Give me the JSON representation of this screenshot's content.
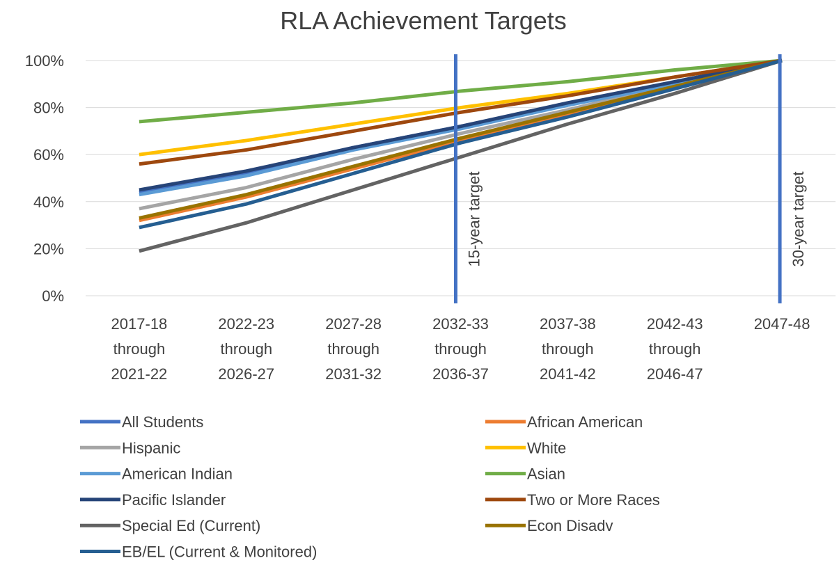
{
  "chart_data": {
    "type": "line",
    "title": "RLA Achievement Targets",
    "categories": [
      "2017-18\nthrough\n2021-22",
      "2022-23\nthrough\n2026-27",
      "2027-28\nthrough\n2031-32",
      "2032-33\nthrough\n2036-37",
      "2037-38\nthrough\n2041-42",
      "2042-43\nthrough\n2046-47",
      "2047-48"
    ],
    "series": [
      {
        "name": "All Students",
        "color": "#4472c4",
        "values": [
          44,
          52,
          63,
          72,
          81,
          91,
          100
        ]
      },
      {
        "name": "African American",
        "color": "#ed7d31",
        "values": [
          32,
          42,
          54,
          66,
          77,
          89,
          100
        ]
      },
      {
        "name": "Hispanic",
        "color": "#a5a5a5",
        "values": [
          37,
          46,
          58,
          69,
          79,
          90,
          100
        ]
      },
      {
        "name": "White",
        "color": "#ffc000",
        "values": [
          60,
          66,
          73,
          80,
          86,
          93,
          100
        ]
      },
      {
        "name": "American Indian",
        "color": "#5b9bd5",
        "values": [
          43,
          51,
          62,
          71,
          81,
          90,
          100
        ]
      },
      {
        "name": "Asian",
        "color": "#70ad47",
        "values": [
          74,
          78,
          82,
          87,
          91,
          96,
          100
        ]
      },
      {
        "name": "Pacific Islander",
        "color": "#264478",
        "values": [
          45,
          53,
          63,
          72,
          82,
          91,
          100
        ]
      },
      {
        "name": "Two or More Races",
        "color": "#9e480e",
        "values": [
          56,
          62,
          70,
          78,
          85,
          93,
          100
        ]
      },
      {
        "name": "Special Ed (Current)",
        "color": "#636363",
        "values": [
          19,
          31,
          45,
          59,
          73,
          86,
          100
        ]
      },
      {
        "name": "Econ Disadv",
        "color": "#997300",
        "values": [
          33,
          43,
          55,
          67,
          78,
          89,
          100
        ]
      },
      {
        "name": "EB/EL (Current & Monitored)",
        "color": "#255e91",
        "values": [
          29,
          39,
          52,
          65,
          76,
          88,
          100
        ]
      }
    ],
    "ylim": [
      0,
      100
    ],
    "yticks": [
      {
        "value": 0,
        "label": "0%"
      },
      {
        "value": 20,
        "label": "20%"
      },
      {
        "value": 40,
        "label": "40%"
      },
      {
        "value": 60,
        "label": "60%"
      },
      {
        "value": 80,
        "label": "80%"
      },
      {
        "value": 100,
        "label": "100%"
      }
    ],
    "grid": true,
    "annotations": [
      {
        "text": "15-year target",
        "at": "2032-33\nthrough\n2036-37",
        "color": "#4472c4"
      },
      {
        "text": "30-year target",
        "at": "2047-48",
        "color": "#4472c4"
      }
    ]
  }
}
